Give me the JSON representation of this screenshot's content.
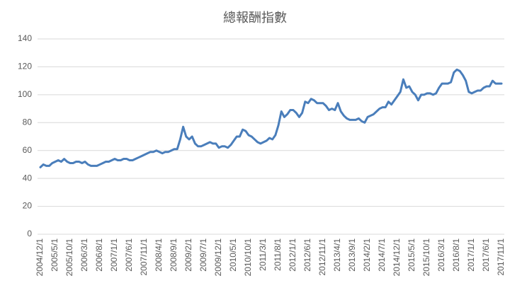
{
  "chart_data": {
    "type": "line",
    "title": "總報酬指數",
    "categories": [
      "2004/12/1",
      null,
      null,
      null,
      null,
      "2005/5/1",
      null,
      null,
      null,
      null,
      "2005/10/1",
      null,
      null,
      null,
      null,
      "2006/3/1",
      null,
      null,
      null,
      null,
      "2006/8/1",
      null,
      null,
      null,
      null,
      "2007/1/1",
      null,
      null,
      null,
      null,
      "2007/6/1",
      null,
      null,
      null,
      null,
      "2007/11/1",
      null,
      null,
      null,
      null,
      "2008/4/1",
      null,
      null,
      null,
      null,
      "2008/9/1",
      null,
      null,
      null,
      null,
      "2009/2/1",
      null,
      null,
      null,
      null,
      "2009/7/1",
      null,
      null,
      null,
      null,
      "2009/12/1",
      null,
      null,
      null,
      null,
      "2010/5/1",
      null,
      null,
      null,
      null,
      "2010/10/1",
      null,
      null,
      null,
      null,
      "2011/3/1",
      null,
      null,
      null,
      null,
      "2011/8/1",
      null,
      null,
      null,
      null,
      "2012/1/1",
      null,
      null,
      null,
      null,
      "2012/6/1",
      null,
      null,
      null,
      null,
      "2012/11/1",
      null,
      null,
      null,
      null,
      "2013/4/1",
      null,
      null,
      null,
      null,
      "2013/9/1",
      null,
      null,
      null,
      null,
      "2014/2/1",
      null,
      null,
      null,
      null,
      "2014/7/1",
      null,
      null,
      null,
      null,
      "2014/12/1",
      null,
      null,
      null,
      null,
      "2015/5/1",
      null,
      null,
      null,
      null,
      "2015/10/1",
      null,
      null,
      null,
      null,
      "2016/3/1",
      null,
      null,
      null,
      null,
      "2016/8/1",
      null,
      null,
      null,
      null,
      "2017/1/1",
      null,
      null,
      null,
      null,
      "2017/6/1",
      null,
      null,
      null,
      null,
      "2017/11/1"
    ],
    "values": [
      48,
      50,
      49,
      49,
      51,
      52,
      53,
      52,
      54,
      52,
      51,
      51,
      52,
      52,
      51,
      52,
      50,
      49,
      49,
      49,
      50,
      51,
      52,
      52,
      53,
      54,
      53,
      53,
      54,
      54,
      53,
      53,
      54,
      55,
      56,
      57,
      58,
      59,
      59,
      60,
      59,
      58,
      59,
      59,
      60,
      61,
      61,
      68,
      77,
      70,
      68,
      70,
      65,
      63,
      63,
      64,
      65,
      66,
      65,
      65,
      62,
      63,
      63,
      62,
      64,
      67,
      70,
      70,
      75,
      74,
      71,
      70,
      68,
      66,
      65,
      66,
      67,
      69,
      68,
      71,
      78,
      88,
      84,
      86,
      89,
      89,
      87,
      84,
      87,
      95,
      94,
      97,
      96,
      94,
      94,
      94,
      92,
      89,
      90,
      89,
      94,
      88,
      85,
      83,
      82,
      82,
      82,
      83,
      81,
      80,
      84,
      85,
      86,
      88,
      90,
      91,
      91,
      95,
      93,
      96,
      99,
      102,
      111,
      105,
      106,
      102,
      100,
      96,
      100,
      100,
      101,
      101,
      100,
      101,
      105,
      108,
      108,
      108,
      109,
      116,
      118,
      117,
      114,
      110,
      102,
      101,
      102,
      103,
      103,
      105,
      106,
      106,
      110,
      108,
      108,
      108
    ],
    "color": "#4a7ebb",
    "ylim": [
      0,
      140
    ],
    "yticks": [
      0,
      20,
      40,
      60,
      80,
      100,
      120,
      140
    ],
    "grid": true
  }
}
